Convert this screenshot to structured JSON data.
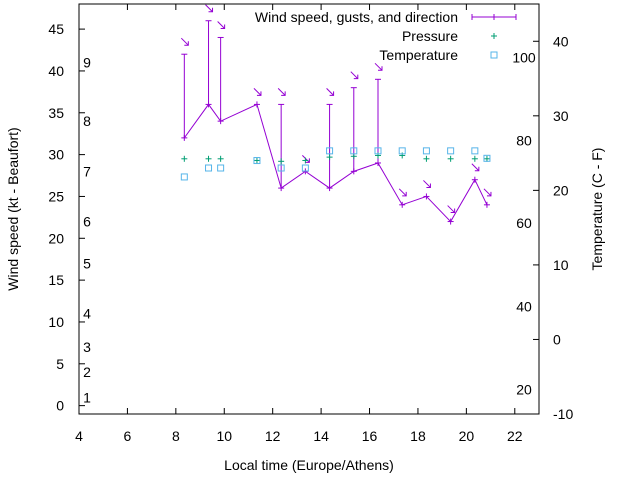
{
  "chart_data": {
    "type": "line",
    "title": "",
    "xlabel": "Local time (Europe/Athens)",
    "ylabel": "Wind speed (kt - Beaufort)",
    "y2label": "Temperature (C - F)",
    "xlim": [
      4,
      23
    ],
    "ylim": [
      -1,
      48
    ],
    "y2lim": [
      -10,
      45
    ],
    "xticks": [
      "4",
      "6",
      "8",
      "10",
      "12",
      "14",
      "16",
      "18",
      "20",
      "22"
    ],
    "yticks": [
      "0",
      "5",
      "10",
      "15",
      "20",
      "25",
      "30",
      "35",
      "40",
      "45"
    ],
    "y2ticks": [
      "-10",
      "0",
      "10",
      "20",
      "30",
      "40"
    ],
    "beaufort_labels": [
      {
        "label": "1",
        "y": 1
      },
      {
        "label": "2",
        "y": 4
      },
      {
        "label": "3",
        "y": 7
      },
      {
        "label": "4",
        "y": 11
      },
      {
        "label": "5",
        "y": 17
      },
      {
        "label": "6",
        "y": 22
      },
      {
        "label": "7",
        "y": 28
      },
      {
        "label": "8",
        "y": 34
      },
      {
        "label": "9",
        "y": 41
      }
    ],
    "fahrenheit_labels": [
      {
        "label": "20",
        "y2": -6.7
      },
      {
        "label": "40",
        "y2": 4.4
      },
      {
        "label": "60",
        "y2": 15.6
      },
      {
        "label": "80",
        "y2": 26.7
      },
      {
        "label": "100",
        "y2": 37.8
      }
    ],
    "legend_position": "top-right",
    "series": [
      {
        "name": "Wind speed, gusts, and direction",
        "color": "#9400d3",
        "style": "line-errorbars",
        "x": [
          8.35,
          9.35,
          9.85,
          11.35,
          12.35,
          13.35,
          14.35,
          15.35,
          16.35,
          17.35,
          18.35,
          19.35,
          20.35,
          20.85
        ],
        "values": [
          32,
          36,
          34,
          36,
          26,
          28,
          26,
          28,
          29,
          24,
          25,
          22,
          27,
          24
        ],
        "gusts": [
          42,
          46,
          44,
          36,
          36,
          28,
          36,
          38,
          39,
          24,
          25,
          22,
          27,
          24
        ],
        "directions": [
          "arrow",
          "arrow",
          "arrow",
          "arrow",
          "arrow",
          "arrow",
          "arrow",
          "arrow",
          "arrow",
          "arrow",
          "arrow",
          "arrow",
          "arrow",
          "arrow"
        ]
      },
      {
        "name": "Pressure",
        "color": "#009e73",
        "style": "plus",
        "x": [
          8.35,
          9.35,
          9.85,
          11.35,
          12.35,
          13.35,
          14.35,
          15.35,
          16.35,
          17.35,
          18.35,
          19.35,
          20.35,
          20.85
        ],
        "values": [
          29.5,
          29.5,
          29.5,
          29.3,
          29.2,
          29.3,
          29.7,
          29.8,
          29.9,
          29.9,
          29.5,
          29.5,
          29.5,
          29.5
        ]
      },
      {
        "name": "Temperature",
        "color": "#56b4e9",
        "style": "square",
        "axis": "y2",
        "x": [
          8.35,
          9.35,
          9.85,
          11.35,
          12.35,
          13.35,
          14.35,
          15.35,
          16.35,
          17.35,
          18.35,
          19.35,
          20.35,
          20.85
        ],
        "values": [
          21.8,
          23.0,
          23.0,
          24.0,
          23.0,
          23.0,
          25.3,
          25.3,
          25.3,
          25.3,
          25.3,
          25.3,
          25.3,
          24.3
        ]
      }
    ]
  }
}
